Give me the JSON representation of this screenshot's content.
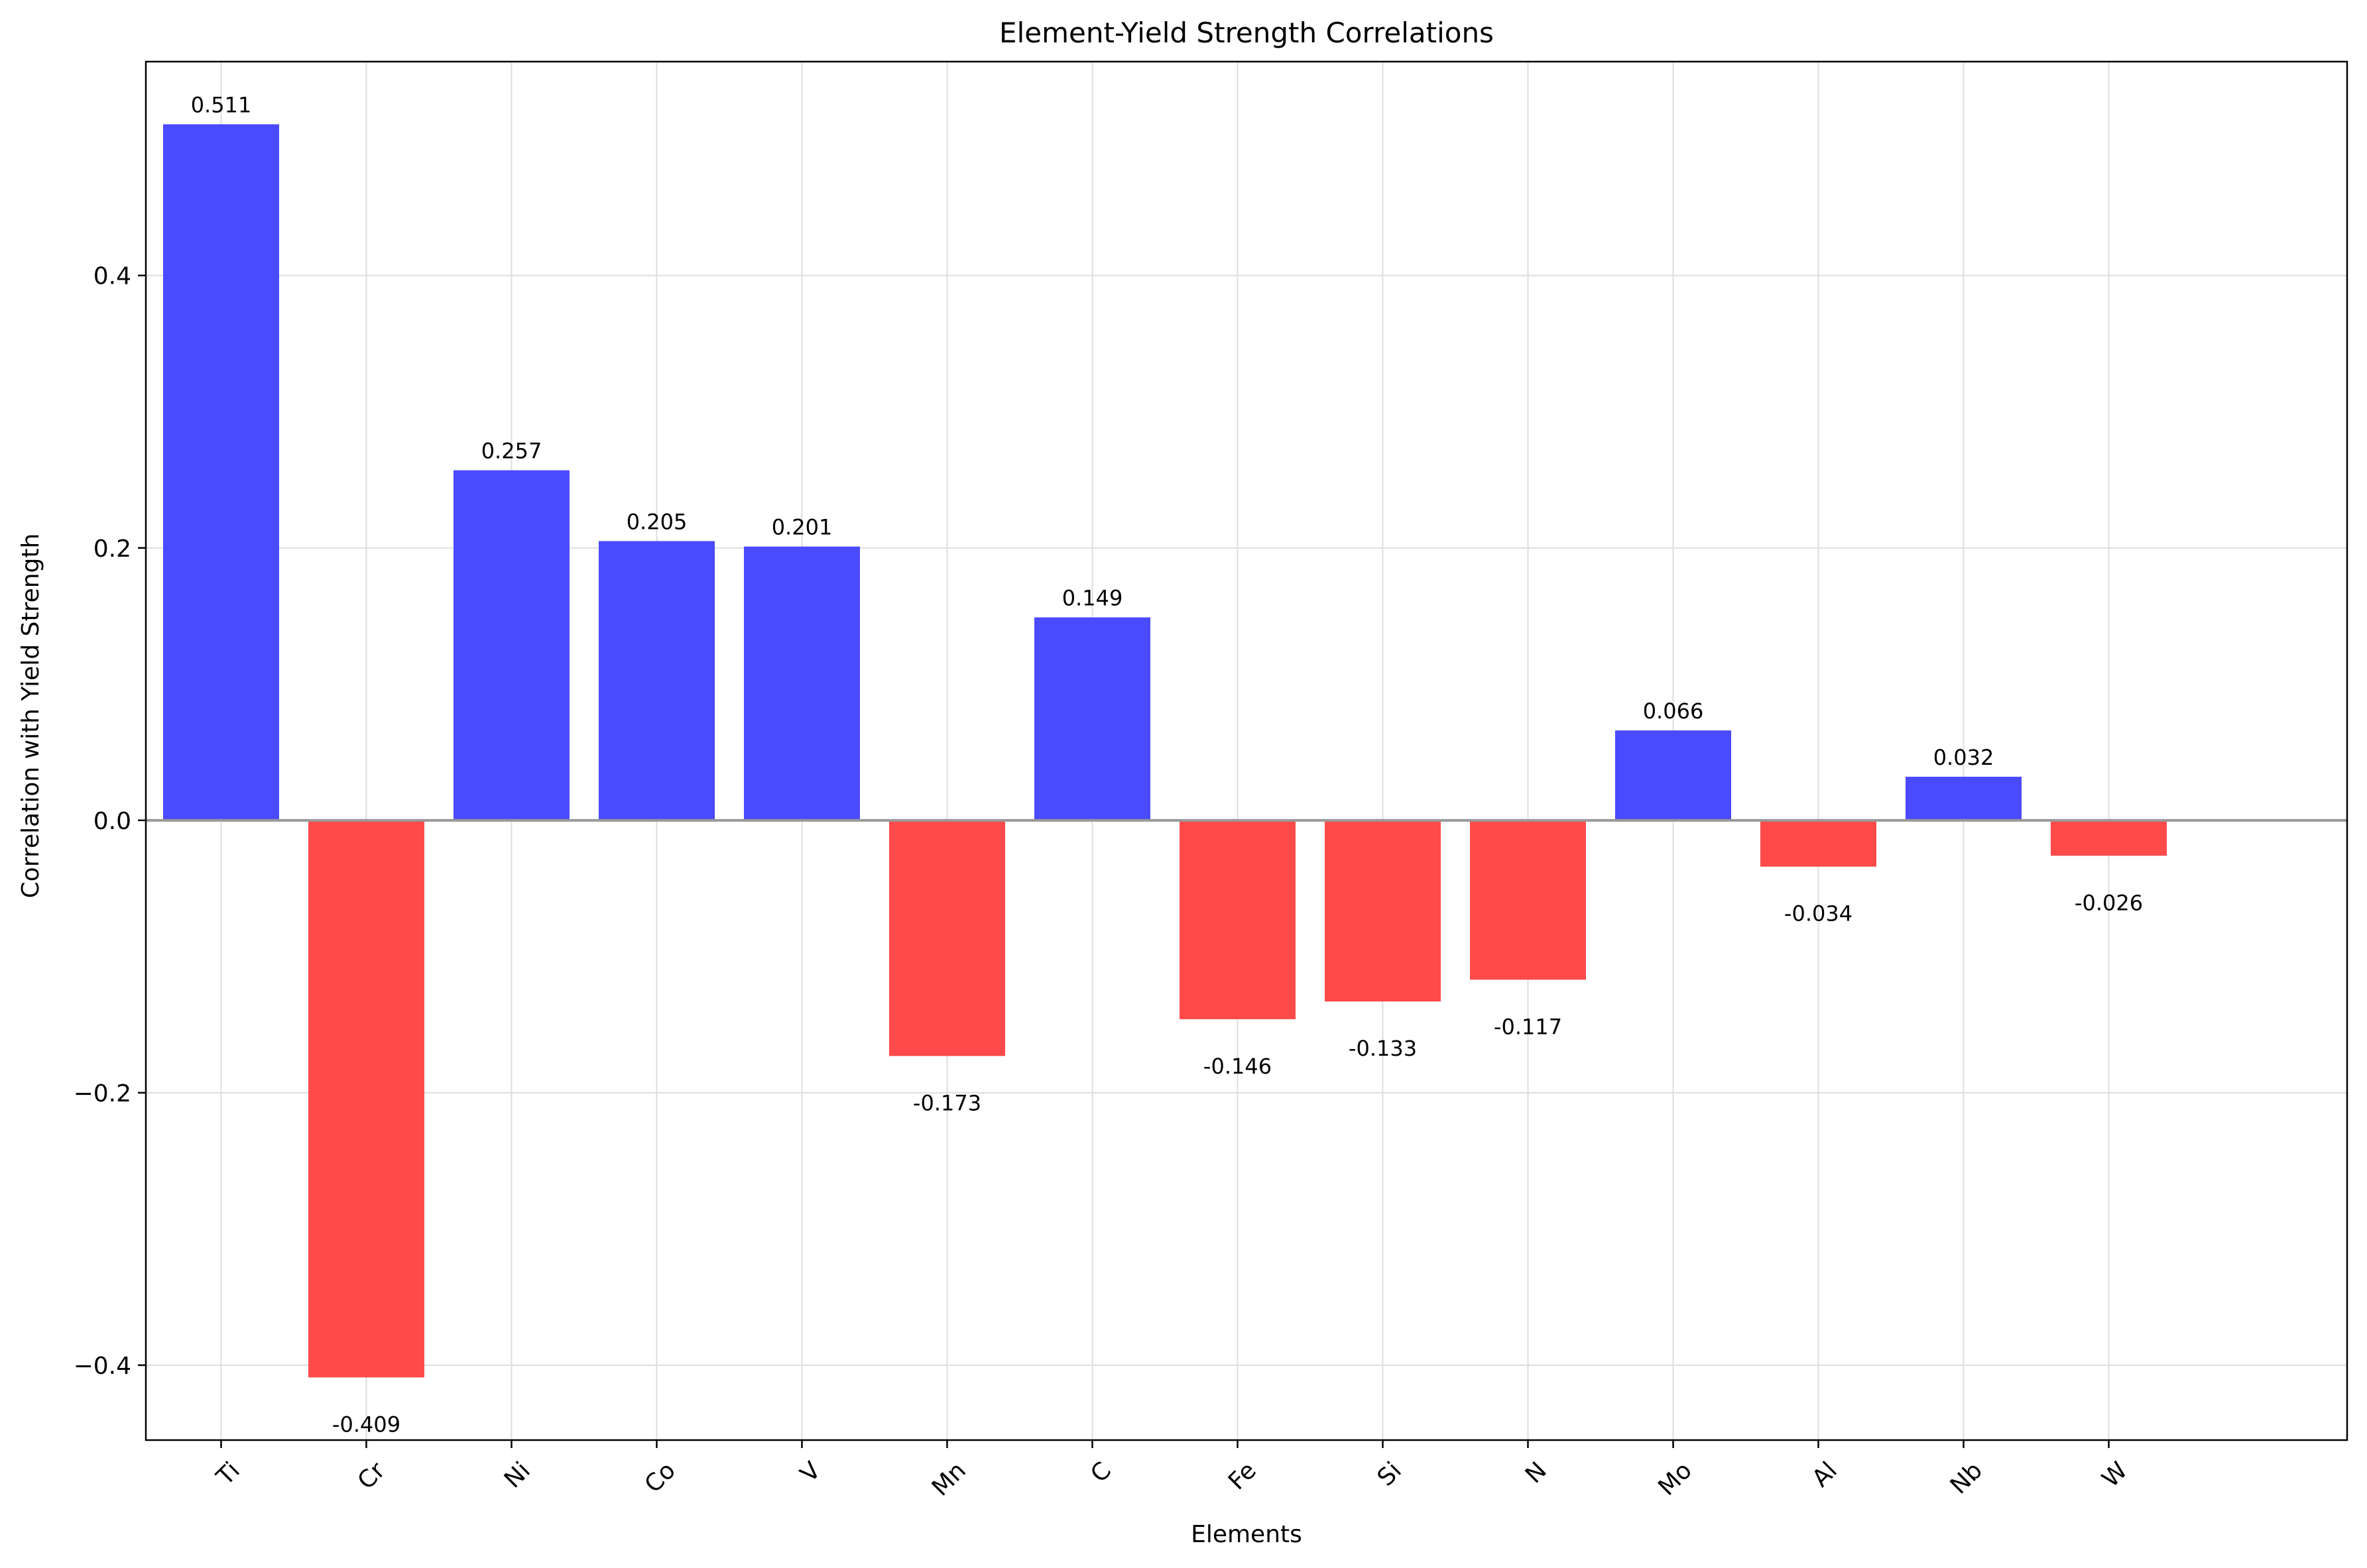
{
  "chart_data": {
    "type": "bar",
    "title": "Element-Yield Strength Correlations",
    "xlabel": "Elements",
    "ylabel": "Correlation with Yield Strength",
    "categories": [
      "Ti",
      "Cr",
      "Ni",
      "Co",
      "V",
      "Mn",
      "C",
      "Fe",
      "Si",
      "N",
      "Mo",
      "Al",
      "Nb",
      "W"
    ],
    "values": [
      0.511,
      -0.409,
      0.257,
      0.205,
      0.201,
      -0.173,
      0.149,
      -0.146,
      -0.133,
      -0.117,
      0.066,
      -0.034,
      0.032,
      -0.026
    ],
    "value_labels": [
      "0.511",
      "-0.409",
      "0.257",
      "0.205",
      "0.201",
      "-0.173",
      "0.149",
      "-0.146",
      "-0.133",
      "-0.117",
      "0.066",
      "-0.034",
      "0.032",
      "-0.026"
    ],
    "ylim": [
      -0.455,
      0.557
    ],
    "yticks": [
      -0.4,
      -0.2,
      0.0,
      0.2,
      0.4
    ],
    "ytick_labels": [
      "−0.4",
      "−0.2",
      "0.0",
      "0.2",
      "0.4"
    ],
    "grid": true,
    "zero_line": true,
    "colors": {
      "positive": "#4a4aff",
      "negative": "#ff4a4a",
      "zero_line": "#999999",
      "grid": "#dddddd",
      "axes": "#000000"
    }
  }
}
